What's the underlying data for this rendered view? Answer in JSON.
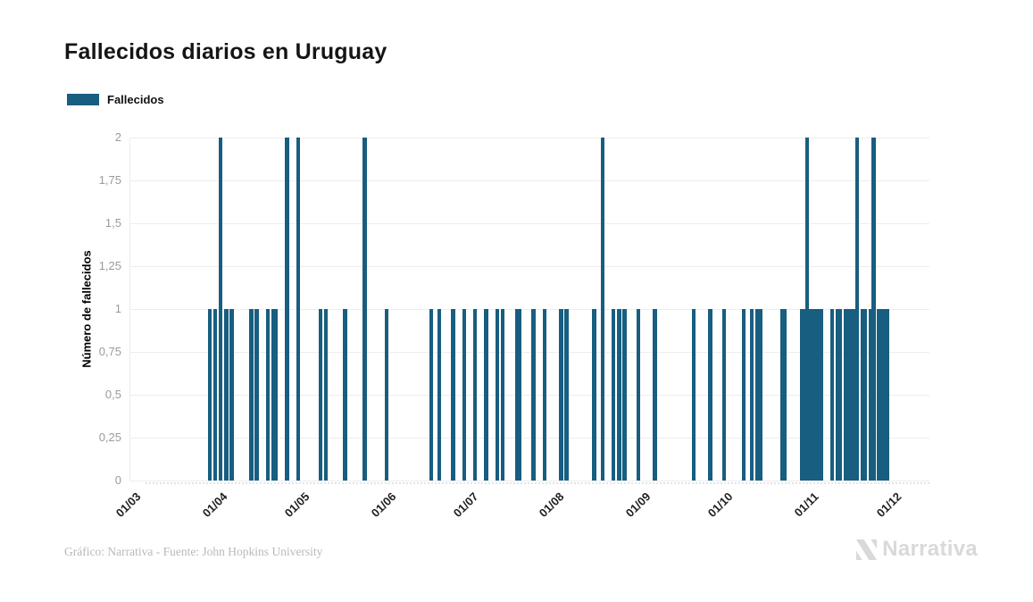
{
  "page": {
    "source_credit": "Gráfico: Narrativa - Fuente: John Hopkins University",
    "logo_text": "Narrativa"
  },
  "chart_data": {
    "type": "bar",
    "title": "Fallecidos diarios en Uruguay",
    "legend": [
      "Fallecidos"
    ],
    "legend_position": "top-left",
    "ylabel": "Número de fallecidos",
    "xlabel": "",
    "ylim": [
      0,
      2
    ],
    "y_tick_step": 0.25,
    "y_tick_labels": [
      "0",
      "0,25",
      "0,5",
      "0,75",
      "1",
      "1,25",
      "1,5",
      "1,75",
      "2"
    ],
    "x_tick_labels": [
      "01/03",
      "01/04",
      "01/05",
      "01/06",
      "01/07",
      "01/08",
      "01/09",
      "01/10",
      "01/11",
      "01/12"
    ],
    "date_format": "dd/mm",
    "grid": true,
    "colors": {
      "bar": "#175e80",
      "grid": "#ededed",
      "axis_label": "#9b9b9b",
      "tick_label": "#1f1f1f",
      "title": "#151515",
      "source": "#b9b9b9",
      "logo": "#d9d9d9"
    },
    "points": [
      {
        "date": "30/03",
        "value": 1
      },
      {
        "date": "01/04",
        "value": 1
      },
      {
        "date": "03/04",
        "value": 2
      },
      {
        "date": "05/04",
        "value": 1
      },
      {
        "date": "07/04",
        "value": 1
      },
      {
        "date": "14/04",
        "value": 1
      },
      {
        "date": "16/04",
        "value": 1
      },
      {
        "date": "20/04",
        "value": 1
      },
      {
        "date": "22/04",
        "value": 1
      },
      {
        "date": "23/04",
        "value": 1
      },
      {
        "date": "27/04",
        "value": 2
      },
      {
        "date": "01/05",
        "value": 2
      },
      {
        "date": "09/05",
        "value": 1
      },
      {
        "date": "11/05",
        "value": 1
      },
      {
        "date": "18/05",
        "value": 1
      },
      {
        "date": "25/05",
        "value": 2
      },
      {
        "date": "02/06",
        "value": 1
      },
      {
        "date": "18/06",
        "value": 1
      },
      {
        "date": "21/06",
        "value": 1
      },
      {
        "date": "26/06",
        "value": 1
      },
      {
        "date": "30/06",
        "value": 1
      },
      {
        "date": "04/07",
        "value": 1
      },
      {
        "date": "08/07",
        "value": 1
      },
      {
        "date": "12/07",
        "value": 1
      },
      {
        "date": "14/07",
        "value": 1
      },
      {
        "date": "19/07",
        "value": 1
      },
      {
        "date": "20/07",
        "value": 1
      },
      {
        "date": "25/07",
        "value": 1
      },
      {
        "date": "29/07",
        "value": 1
      },
      {
        "date": "04/08",
        "value": 1
      },
      {
        "date": "06/08",
        "value": 1
      },
      {
        "date": "16/08",
        "value": 1
      },
      {
        "date": "19/08",
        "value": 2
      },
      {
        "date": "23/08",
        "value": 1
      },
      {
        "date": "25/08",
        "value": 1
      },
      {
        "date": "27/08",
        "value": 1
      },
      {
        "date": "01/09",
        "value": 1
      },
      {
        "date": "07/09",
        "value": 1
      },
      {
        "date": "21/09",
        "value": 1
      },
      {
        "date": "27/09",
        "value": 1
      },
      {
        "date": "02/10",
        "value": 1
      },
      {
        "date": "09/10",
        "value": 1
      },
      {
        "date": "12/10",
        "value": 1
      },
      {
        "date": "14/10",
        "value": 1
      },
      {
        "date": "15/10",
        "value": 1
      },
      {
        "date": "23/10",
        "value": 1
      },
      {
        "date": "24/10",
        "value": 1
      },
      {
        "date": "30/10",
        "value": 1
      },
      {
        "date": "31/10",
        "value": 1
      },
      {
        "date": "01/11",
        "value": 2
      },
      {
        "date": "02/11",
        "value": 1
      },
      {
        "date": "03/11",
        "value": 1
      },
      {
        "date": "04/11",
        "value": 1
      },
      {
        "date": "05/11",
        "value": 1
      },
      {
        "date": "06/11",
        "value": 1
      },
      {
        "date": "10/11",
        "value": 1
      },
      {
        "date": "12/11",
        "value": 1
      },
      {
        "date": "13/11",
        "value": 1
      },
      {
        "date": "15/11",
        "value": 1
      },
      {
        "date": "16/11",
        "value": 1
      },
      {
        "date": "17/11",
        "value": 1
      },
      {
        "date": "18/11",
        "value": 1
      },
      {
        "date": "19/11",
        "value": 2
      },
      {
        "date": "21/11",
        "value": 1
      },
      {
        "date": "22/11",
        "value": 1
      },
      {
        "date": "24/11",
        "value": 1
      },
      {
        "date": "25/11",
        "value": 2
      },
      {
        "date": "27/11",
        "value": 1
      },
      {
        "date": "28/11",
        "value": 1
      },
      {
        "date": "29/11",
        "value": 1
      },
      {
        "date": "30/11",
        "value": 1
      }
    ]
  }
}
